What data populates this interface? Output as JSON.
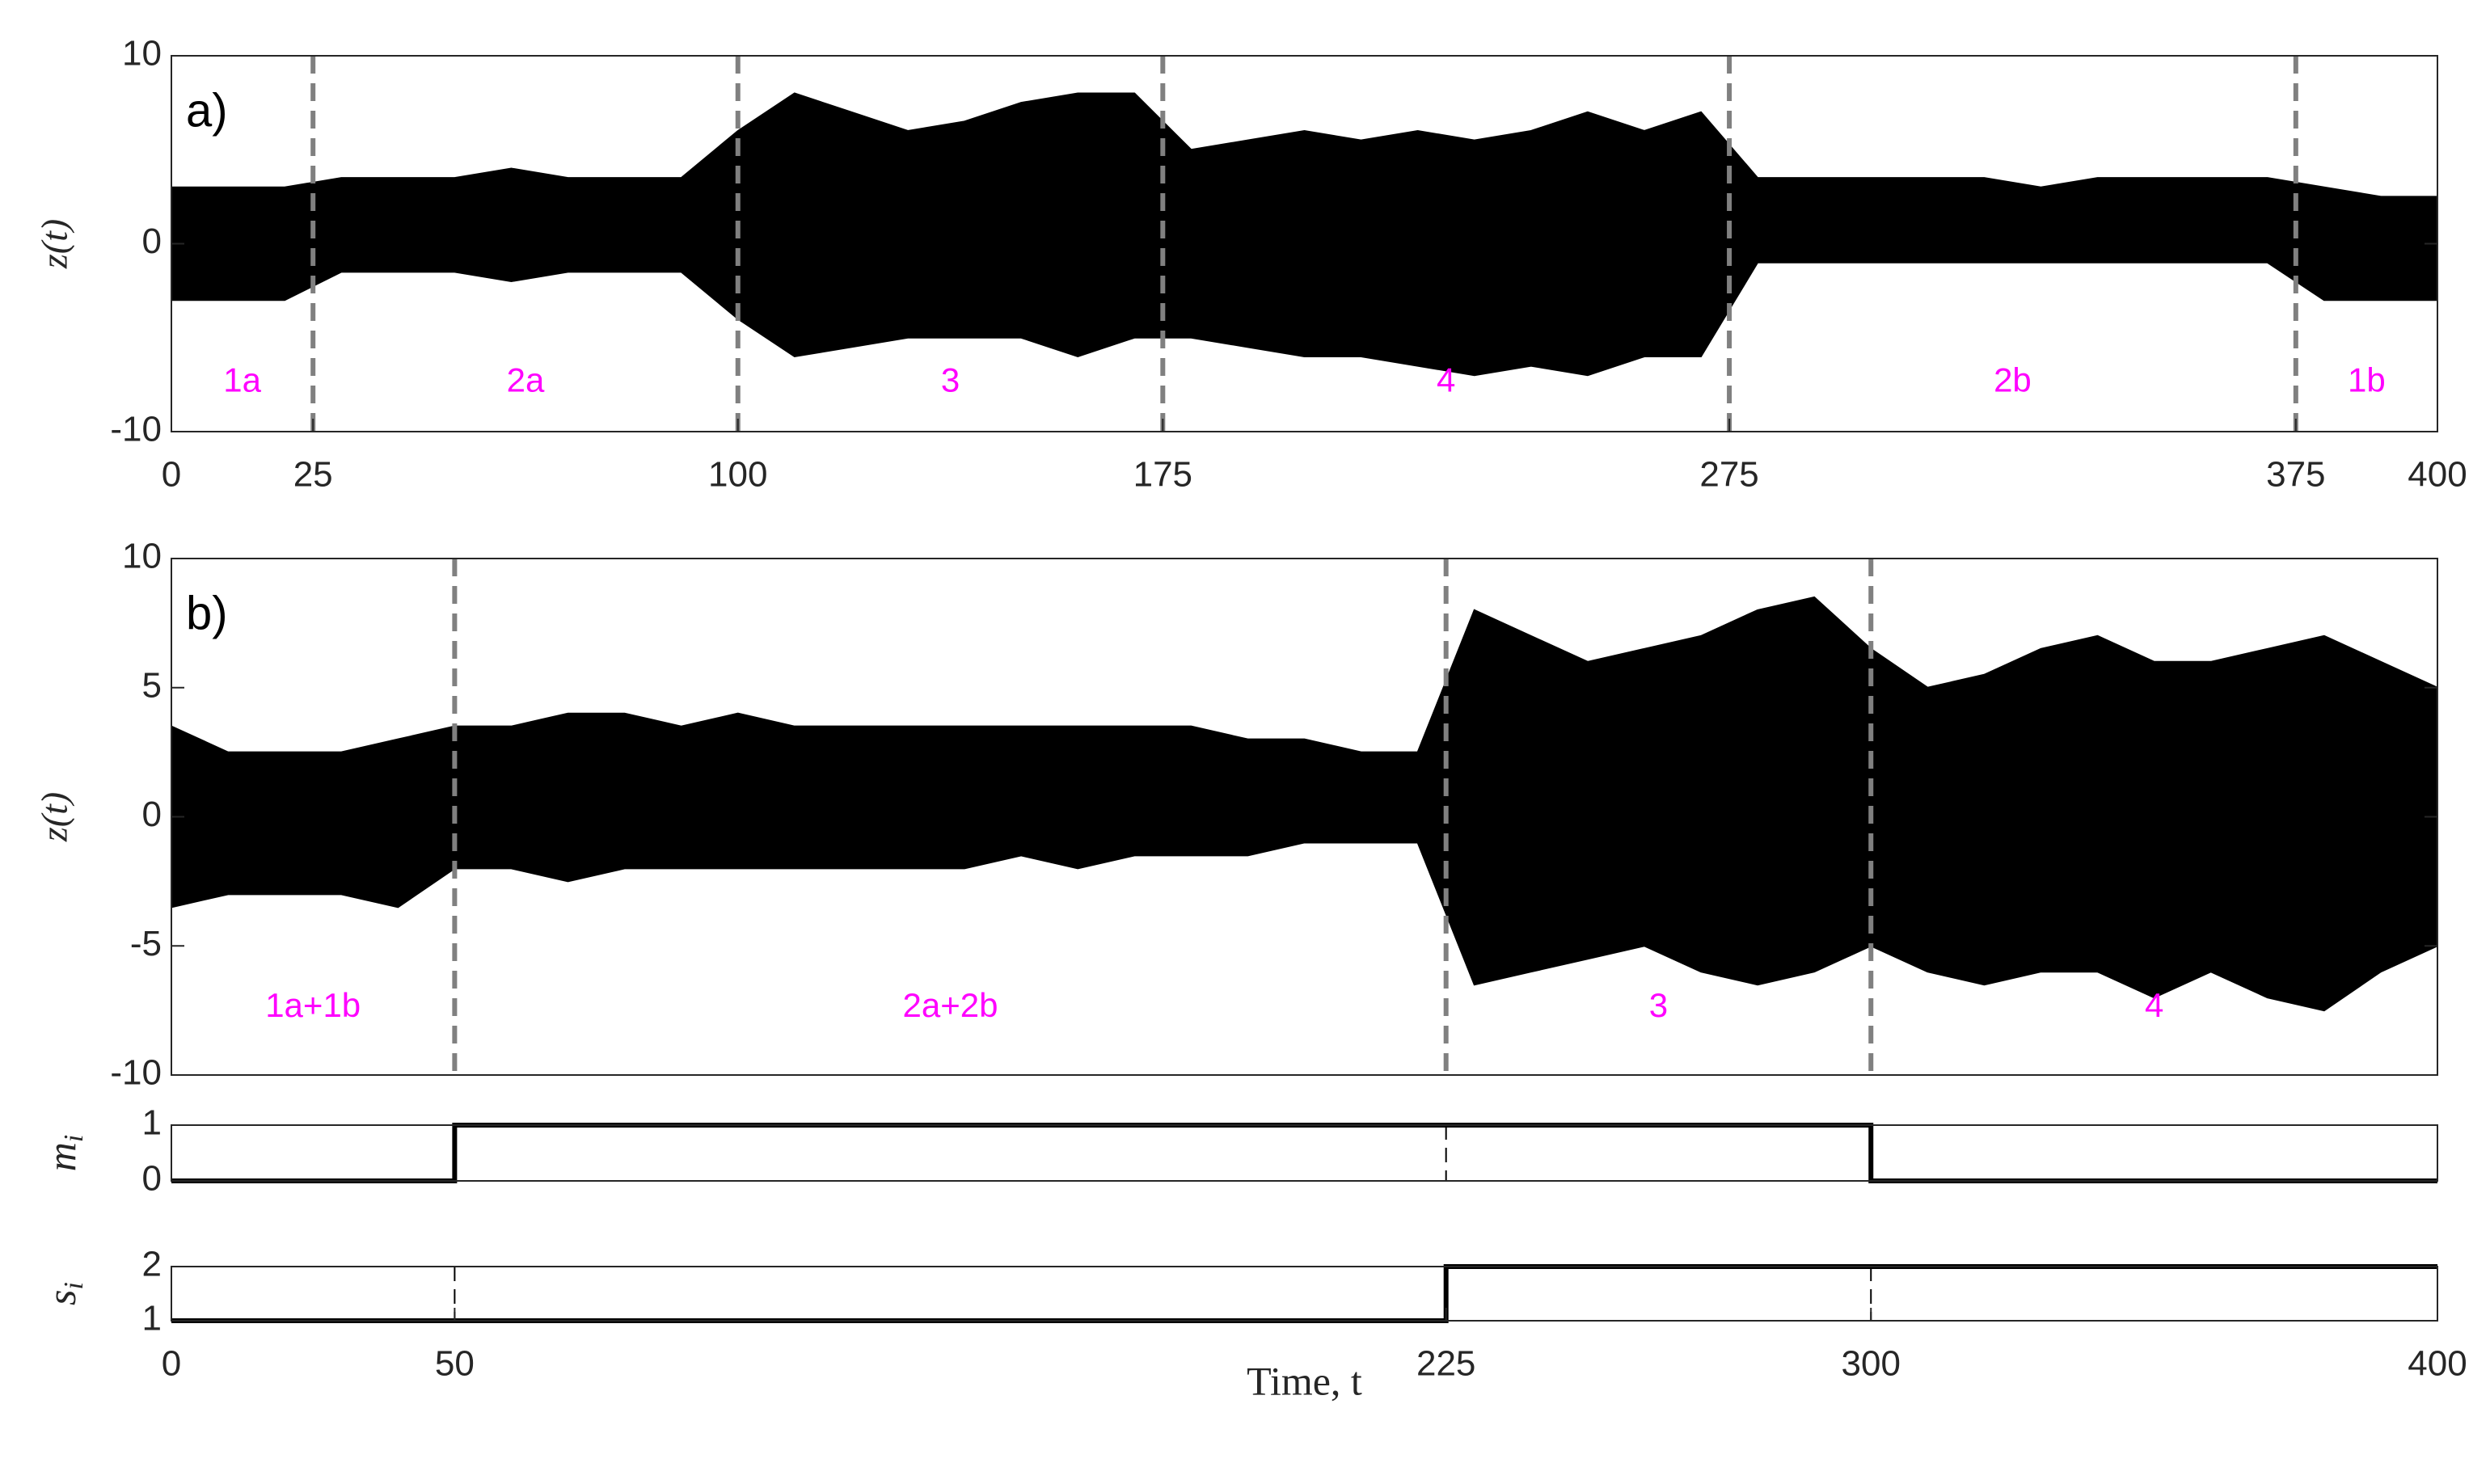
{
  "chart_data": [
    {
      "type": "band",
      "tag": "a)",
      "ylabel": "z(t)",
      "xlim": [
        0,
        400
      ],
      "ylim": [
        -10,
        10
      ],
      "yticks": [
        -10,
        0,
        10
      ],
      "xticks": [
        0,
        25,
        100,
        175,
        275,
        375,
        400
      ],
      "color": "#000000",
      "boundary_color": "#808080",
      "boundaries": [
        25,
        100,
        175,
        275,
        375
      ],
      "regions": [
        "1a",
        "2a",
        "3",
        "4",
        "2b",
        "1b"
      ],
      "x": [
        0,
        10,
        20,
        30,
        40,
        50,
        60,
        70,
        80,
        90,
        100,
        110,
        120,
        130,
        140,
        150,
        160,
        170,
        180,
        190,
        200,
        210,
        220,
        230,
        240,
        250,
        260,
        270,
        280,
        290,
        300,
        310,
        320,
        330,
        340,
        350,
        360,
        370,
        380,
        390,
        400
      ],
      "upper": [
        3,
        3,
        3,
        3.5,
        3.5,
        3.5,
        4,
        3.5,
        3.5,
        3.5,
        6,
        8,
        7,
        6,
        6.5,
        7.5,
        8,
        8,
        5,
        5.5,
        6,
        5.5,
        6,
        5.5,
        6,
        7,
        6,
        7,
        3.5,
        3.5,
        3.5,
        3.5,
        3.5,
        3,
        3.5,
        3.5,
        3.5,
        3.5,
        3,
        2.5,
        2.5
      ],
      "lower": [
        -3,
        -3,
        -3,
        -1.5,
        -1.5,
        -1.5,
        -2,
        -1.5,
        -1.5,
        -1.5,
        -4,
        -6,
        -5.5,
        -5,
        -5,
        -5,
        -6,
        -5,
        -5,
        -5.5,
        -6,
        -6,
        -6.5,
        -7,
        -6.5,
        -7,
        -6,
        -6,
        -1,
        -1,
        -1,
        -1,
        -1,
        -1,
        -1,
        -1,
        -1,
        -1,
        -3,
        -3,
        -3
      ]
    },
    {
      "type": "band",
      "tag": "b)",
      "ylabel": "z(t)",
      "xlim": [
        0,
        400
      ],
      "ylim": [
        -10,
        10
      ],
      "yticks": [
        -10,
        -5,
        0,
        5,
        10
      ],
      "color": "#000000",
      "boundary_color": "#808080",
      "boundaries": [
        50,
        225,
        300
      ],
      "regions": [
        "1a+1b",
        "2a+2b",
        "3",
        "4"
      ],
      "x": [
        0,
        10,
        20,
        30,
        40,
        50,
        60,
        70,
        80,
        90,
        100,
        110,
        120,
        130,
        140,
        150,
        160,
        170,
        180,
        190,
        200,
        210,
        220,
        230,
        240,
        250,
        260,
        270,
        280,
        290,
        300,
        310,
        320,
        330,
        340,
        350,
        360,
        370,
        380,
        390,
        400
      ],
      "upper": [
        3.5,
        2.5,
        2.5,
        2.5,
        3,
        3.5,
        3.5,
        4,
        4,
        3.5,
        4,
        3.5,
        3.5,
        3.5,
        3.5,
        3.5,
        3.5,
        3.5,
        3.5,
        3,
        3,
        2.5,
        2.5,
        8,
        7,
        6,
        6.5,
        7,
        8,
        8.5,
        6.5,
        5,
        5.5,
        6.5,
        7,
        6,
        6,
        6.5,
        7,
        6,
        5
      ],
      "lower": [
        -3.5,
        -3,
        -3,
        -3,
        -3.5,
        -2,
        -2,
        -2.5,
        -2,
        -2,
        -2,
        -2,
        -2,
        -2,
        -2,
        -1.5,
        -2,
        -1.5,
        -1.5,
        -1.5,
        -1,
        -1,
        -1,
        -6.5,
        -6,
        -5.5,
        -5,
        -6,
        -6.5,
        -6,
        -5,
        -6,
        -6.5,
        -6,
        -6,
        -7,
        -6,
        -7,
        -7.5,
        -6,
        -5
      ]
    },
    {
      "type": "line",
      "ylabel": [
        "m",
        "i"
      ],
      "xlim": [
        0,
        400
      ],
      "ylim": [
        0,
        1
      ],
      "yticks": [
        0,
        1
      ],
      "color": "#000000",
      "boundaries": [
        50,
        225,
        300
      ],
      "x": [
        0,
        50,
        50,
        300,
        300,
        400
      ],
      "values": [
        0,
        0,
        1,
        1,
        0,
        0
      ]
    },
    {
      "type": "line",
      "ylabel": [
        "s",
        "i"
      ],
      "xlabel": "Time, t",
      "xlim": [
        0,
        400
      ],
      "ylim": [
        1,
        2
      ],
      "yticks": [
        1,
        2
      ],
      "xticks": [
        0,
        50,
        225,
        300,
        400
      ],
      "color": "#000000",
      "boundaries": [
        50,
        225,
        300
      ],
      "x": [
        0,
        225,
        225,
        400
      ],
      "values": [
        1,
        1,
        2,
        2
      ]
    }
  ]
}
